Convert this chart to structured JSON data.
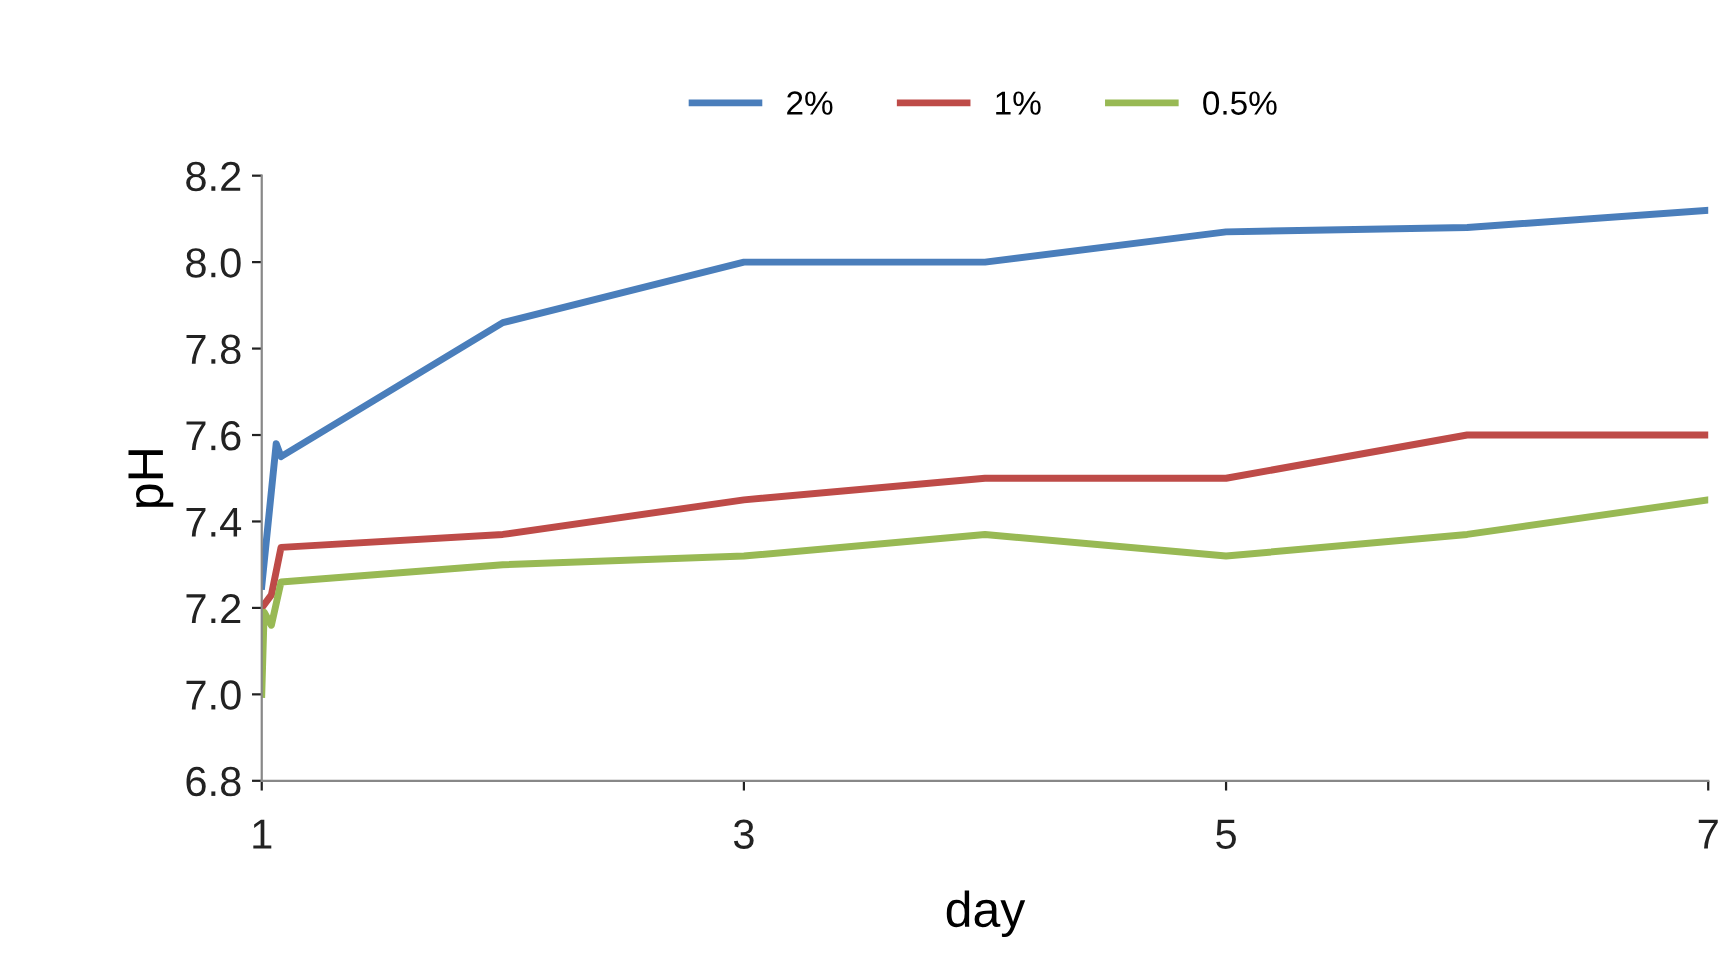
{
  "chart_data": {
    "type": "line",
    "xlabel": "day",
    "ylabel": "pH",
    "xlim": [
      1,
      7
    ],
    "xticks": [
      1,
      3,
      5,
      7
    ],
    "ylim": [
      6.8,
      8.2
    ],
    "yticks": [
      {
        "value": 6.8,
        "label": "6.8"
      },
      {
        "value": 7.0,
        "label": "7.0"
      },
      {
        "value": 7.2,
        "label": "7.2"
      },
      {
        "value": 7.4,
        "label": "7.4"
      },
      {
        "value": 7.6,
        "label": "7.6"
      },
      {
        "value": 7.8,
        "label": "7.8"
      },
      {
        "value": 8.0,
        "label": "8.0"
      },
      {
        "value": 8.2,
        "label": "8.2"
      }
    ],
    "grid": false,
    "legend": "top",
    "marker": "none",
    "line_style": "solid",
    "series": [
      {
        "name": "2%",
        "color": "#4a7ebb",
        "x": [
          1,
          1.06,
          1.08,
          2,
          3,
          4,
          5,
          6,
          7
        ],
        "values": [
          7.25,
          7.58,
          7.55,
          7.86,
          8.0,
          8.0,
          8.07,
          8.08,
          8.12
        ]
      },
      {
        "name": "1%",
        "color": "#be4b48",
        "x": [
          1,
          1.04,
          1.08,
          2,
          3,
          4,
          5,
          6,
          7
        ],
        "values": [
          7.2,
          7.23,
          7.34,
          7.37,
          7.45,
          7.5,
          7.5,
          7.6,
          7.6
        ]
      },
      {
        "name": "0.5%",
        "color": "#98b954",
        "x": [
          1,
          1.01,
          1.04,
          1.08,
          2,
          3,
          4,
          5,
          6,
          7
        ],
        "values": [
          7.0,
          7.19,
          7.16,
          7.26,
          7.3,
          7.32,
          7.37,
          7.32,
          7.37,
          7.45
        ]
      }
    ]
  }
}
